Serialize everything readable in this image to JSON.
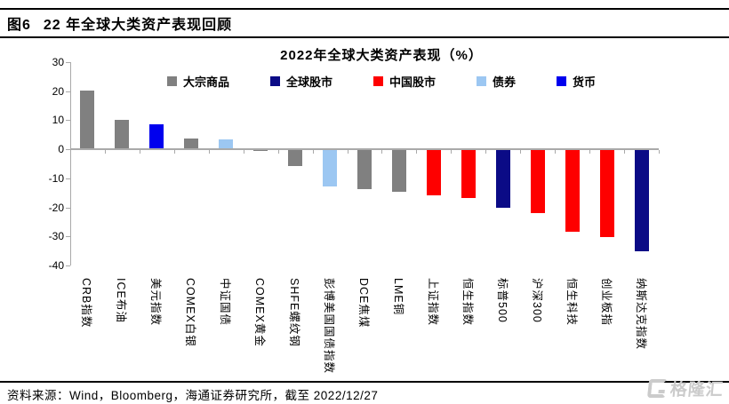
{
  "header": {
    "figure_label": "图6",
    "title": "22 年全球大类资产表现回顾"
  },
  "chart_data": {
    "type": "bar",
    "title": "2022年全球大类资产表现（%）",
    "xlabel": "",
    "ylabel": "",
    "ylim": [
      -40,
      30
    ],
    "yticks": [
      30,
      20,
      10,
      0,
      -10,
      -20,
      -30,
      -40
    ],
    "grid": false,
    "legend_position": "top",
    "legend": [
      {
        "name": "大宗商品",
        "color": "#808080"
      },
      {
        "name": "全球股市",
        "color": "#0b0b86"
      },
      {
        "name": "中国股市",
        "color": "#fe0000"
      },
      {
        "name": "债券",
        "color": "#9cc7f2"
      },
      {
        "name": "货币",
        "color": "#0000ee"
      }
    ],
    "bars": [
      {
        "label": "CRB指数",
        "series": "大宗商品",
        "value": 19.9
      },
      {
        "label": "ICE布油",
        "series": "大宗商品",
        "value": 9.7
      },
      {
        "label": "美元指数",
        "series": "货币",
        "value": 8.4
      },
      {
        "label": "COMEX白银",
        "series": "大宗商品",
        "value": 3.5
      },
      {
        "label": "中证国债",
        "series": "债券",
        "value": 3.0
      },
      {
        "label": "COMEX黄金",
        "series": "大宗商品",
        "value": -0.3
      },
      {
        "label": "SHFE螺纹钢",
        "series": "大宗商品",
        "value": -5.6
      },
      {
        "label": "彭博美国国债指数",
        "series": "债券",
        "value": -12.4
      },
      {
        "label": "DCE焦煤",
        "series": "大宗商品",
        "value": -13.4
      },
      {
        "label": "LME铜",
        "series": "大宗商品",
        "value": -14.4
      },
      {
        "label": "上证指数",
        "series": "中国股市",
        "value": -15.6
      },
      {
        "label": "恒生指数",
        "series": "中国股市",
        "value": -16.6
      },
      {
        "label": "标普500",
        "series": "全球股市",
        "value": -20.0
      },
      {
        "label": "沪深300",
        "series": "中国股市",
        "value": -21.8
      },
      {
        "label": "恒生科技",
        "series": "中国股市",
        "value": -28.0
      },
      {
        "label": "创业板指",
        "series": "中国股市",
        "value": -29.9
      },
      {
        "label": "纳斯达克指数",
        "series": "全球股市",
        "value": -34.9
      }
    ]
  },
  "footer": {
    "source": "资料来源：Wind，Bloomberg，海通证券研究所，截至 2022/12/27"
  },
  "watermark": {
    "text": "格隆汇"
  }
}
